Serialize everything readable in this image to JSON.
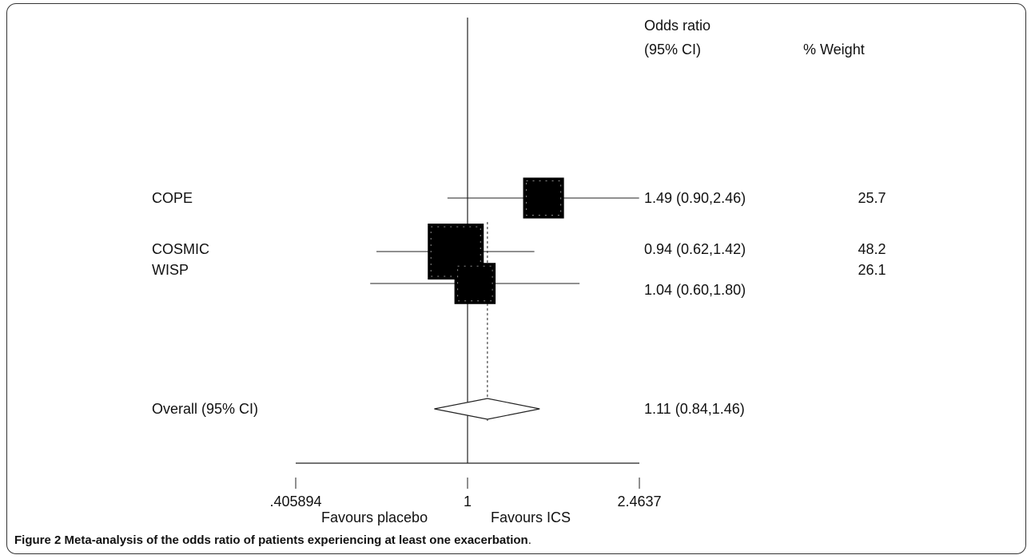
{
  "caption": {
    "label": "Figure 2",
    "text": "Meta-analysis of the odds ratio of patients experiencing at least one exacerbation",
    "end": "."
  },
  "chart_data": {
    "type": "forest",
    "header_or_line1": "Odds ratio",
    "header_or_line2": "(95% CI)",
    "header_weight": "% Weight",
    "studies": [
      {
        "label": "COPE",
        "or": 1.49,
        "lo": 0.9,
        "hi": 2.46,
        "or_text": "1.49 (0.90,2.46)",
        "weight": 25.7,
        "weight_text": "25.7"
      },
      {
        "label": "COSMIC",
        "or": 0.94,
        "lo": 0.62,
        "hi": 1.42,
        "or_text": "0.94 (0.62,1.42)",
        "weight": 48.2,
        "weight_text": "48.2"
      },
      {
        "label": "WISP",
        "or": 1.04,
        "lo": 0.6,
        "hi": 1.8,
        "or_text": "1.04 (0.60,1.80)",
        "weight": 26.1,
        "weight_text": "26.1"
      }
    ],
    "overall": {
      "label": "Overall (95% CI)",
      "or": 1.11,
      "lo": 0.84,
      "hi": 1.46,
      "or_text": "1.11 (0.84,1.46)"
    },
    "x_scale": "log",
    "xlim": [
      0.405894,
      2.4637
    ],
    "null_line": 1,
    "ticks": [
      {
        "value": 0.405894,
        "label": ".405894"
      },
      {
        "value": 1,
        "label": "1"
      },
      {
        "value": 2.4637,
        "label": "2.4637"
      }
    ],
    "favours_left": "Favours placebo",
    "favours_right": "Favours ICS"
  }
}
